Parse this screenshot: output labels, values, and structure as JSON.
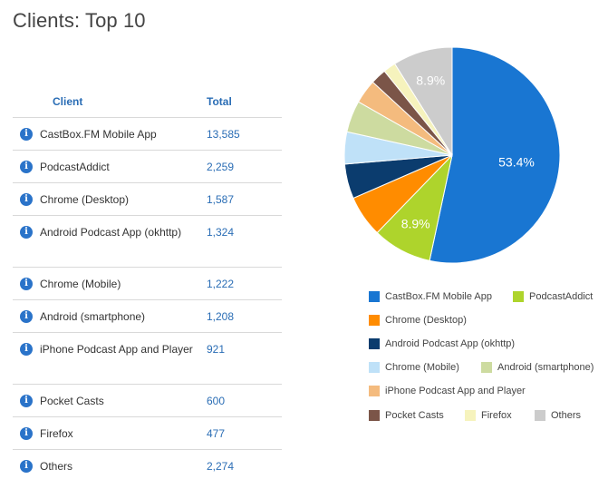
{
  "title": "Clients: Top 10",
  "table": {
    "headers": {
      "client": "Client",
      "total": "Total"
    },
    "info_glyph": "i",
    "rows": [
      {
        "name": "CastBox.FM Mobile App",
        "total": "13,585"
      },
      {
        "name": "PodcastAddict",
        "total": "2,259"
      },
      {
        "name": "Chrome (Desktop)",
        "total": "1,587"
      },
      {
        "name": "Android Podcast App (okhttp)",
        "total": "1,324"
      },
      {
        "name": "Chrome (Mobile)",
        "total": "1,222"
      },
      {
        "name": "Android (smartphone)",
        "total": "1,208"
      },
      {
        "name": "iPhone Podcast App and Player",
        "total": "921"
      },
      {
        "name": "Pocket Casts",
        "total": "600"
      },
      {
        "name": "Firefox",
        "total": "477"
      },
      {
        "name": "Others",
        "total": "2,274"
      }
    ]
  },
  "chart_data": {
    "type": "pie",
    "categories": [
      "CastBox.FM Mobile App",
      "PodcastAddict",
      "Chrome (Desktop)",
      "Android Podcast App (okhttp)",
      "Chrome (Mobile)",
      "Android (smartphone)",
      "iPhone Podcast App and Player",
      "Pocket Casts",
      "Firefox",
      "Others"
    ],
    "values": [
      13585,
      2259,
      1587,
      1324,
      1222,
      1208,
      921,
      600,
      477,
      2274
    ],
    "colors": [
      "#1976d2",
      "#aed42c",
      "#ff8c00",
      "#0b3c6e",
      "#bfe1f8",
      "#cddba0",
      "#f4bb7e",
      "#7b5548",
      "#f6f3bd",
      "#cccccc"
    ],
    "slice_labels": [
      "53.4%",
      "8.9%",
      "",
      "",
      "",
      "",
      "",
      "",
      "",
      "8.9%"
    ],
    "legend_position": "bottom",
    "title": ""
  }
}
